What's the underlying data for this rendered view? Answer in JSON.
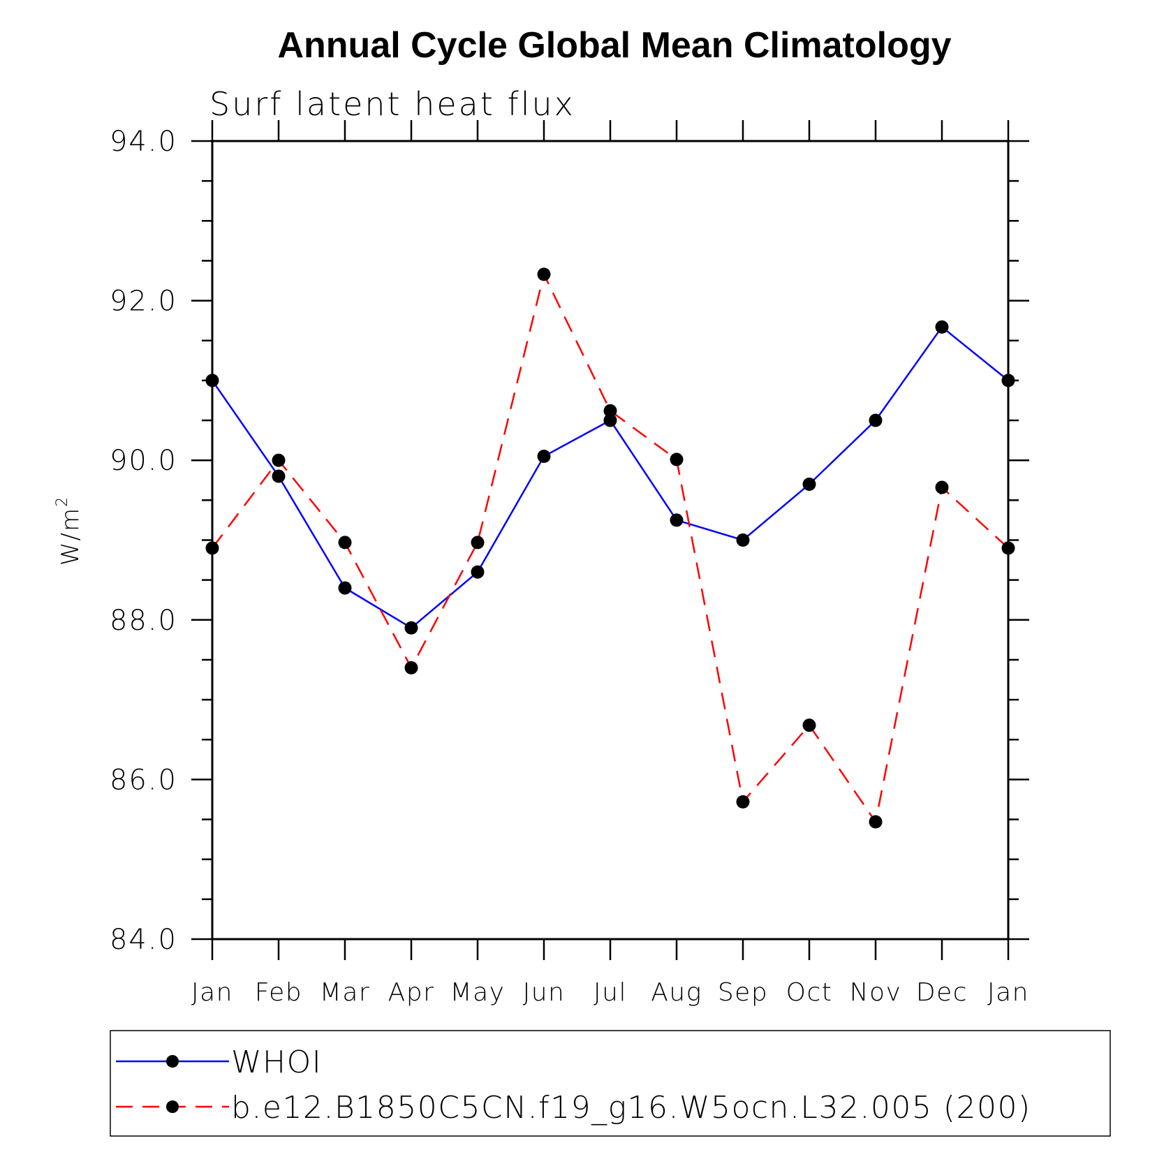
{
  "chart_data": {
    "type": "line",
    "title": "Annual Cycle Global Mean Climatology",
    "subtitle": "Surf latent heat flux",
    "ylabel": "W/m",
    "ylabel_superscript": "2",
    "categories": [
      "Jan",
      "Feb",
      "Mar",
      "Apr",
      "May",
      "Jun",
      "Jul",
      "Aug",
      "Sep",
      "Oct",
      "Nov",
      "Dec",
      "Jan"
    ],
    "ylim": [
      84.0,
      94.0
    ],
    "yticks": [
      "84.0",
      "86.0",
      "88.0",
      "90.0",
      "92.0",
      "94.0"
    ],
    "series": [
      {
        "name": "WHOI",
        "color": "#0000ff",
        "dash": "solid",
        "marker": "filled-circle",
        "values": [
          91.0,
          89.8,
          88.4,
          87.9,
          88.6,
          90.05,
          90.5,
          89.25,
          89.0,
          89.7,
          90.5,
          91.67,
          91.0
        ]
      },
      {
        "name": "b.e12.B1850C5CN.f19_g16.W5ocn.L32.005 (200)",
        "color": "#ff0000",
        "dash": "dashed",
        "marker": "filled-circle",
        "values": [
          88.9,
          90.0,
          88.97,
          87.4,
          88.97,
          92.33,
          90.62,
          90.01,
          85.72,
          86.68,
          85.47,
          89.66,
          88.9
        ]
      }
    ],
    "legend_position": "bottom",
    "grid": false
  }
}
